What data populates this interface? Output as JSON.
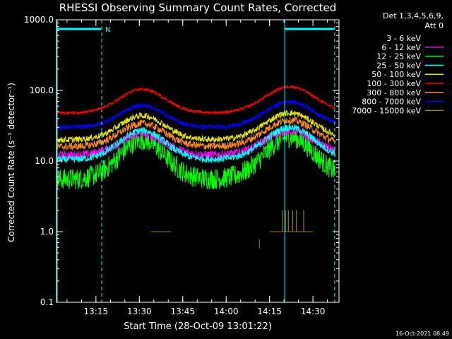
{
  "chart_data": {
    "type": "line",
    "title": "RHESSI Observing Summary Count Rates, Corrected",
    "xlabel": "Start Time (28-Oct-09 13:01:22)",
    "ylabel": "Corrected Count Rate (s⁻¹ detector⁻¹)",
    "y_scale": "log",
    "ylim": [
      0.1,
      1000
    ],
    "y_ticks": [
      {
        "value": 1000,
        "label": "1000.0"
      },
      {
        "value": 100,
        "label": "100.0"
      },
      {
        "value": 10,
        "label": "10.0"
      },
      {
        "value": 1,
        "label": "1.0"
      },
      {
        "value": 0.1,
        "label": "0.1"
      }
    ],
    "xlim_minutes": [
      1.37,
      99.0
    ],
    "x_ticks": [
      {
        "minute": 15,
        "label": "13:15"
      },
      {
        "minute": 30,
        "label": "13:30"
      },
      {
        "minute": 45,
        "label": "13:45"
      },
      {
        "minute": 60,
        "label": "14:00"
      },
      {
        "minute": 75,
        "label": "14:15"
      },
      {
        "minute": 90,
        "label": "14:30"
      }
    ],
    "legend_header": [
      "Det 1,3,4,5,6,9,",
      "Att 0"
    ],
    "series": [
      {
        "name": "3 - 6 keV",
        "color": "#000000",
        "base": 7.0,
        "peak1": 18.0,
        "peak2": 17.0,
        "noise": 0.35
      },
      {
        "name": "6 - 12 keV",
        "color": "#ff00ff",
        "base": 12.0,
        "peak1": 24.0,
        "peak2": 27.0,
        "noise": 0.15
      },
      {
        "name": "12 - 25 keV",
        "color": "#00ff00",
        "base": 5.5,
        "peak1": 20.0,
        "peak2": 22.0,
        "noise": 0.35
      },
      {
        "name": "25 - 50 keV",
        "color": "#00ffff",
        "base": 10.5,
        "peak1": 27.0,
        "peak2": 30.0,
        "noise": 0.12
      },
      {
        "name": "50 - 100 keV",
        "color": "#e8e800",
        "base": 20.0,
        "peak1": 44.0,
        "peak2": 48.0,
        "noise": 0.1
      },
      {
        "name": "100 - 300 keV",
        "color": "#ff0000",
        "base": 48.0,
        "peak1": 104.0,
        "peak2": 113.0,
        "noise": 0.05
      },
      {
        "name": "300 - 800 keV",
        "color": "#ff8c1a",
        "base": 16.0,
        "peak1": 34.0,
        "peak2": 38.0,
        "noise": 0.12
      },
      {
        "name": "800 - 7000 keV",
        "color": "#0000ff",
        "base": 30.0,
        "peak1": 61.0,
        "peak2": 69.0,
        "noise": 0.08
      },
      {
        "name": "7000 - 15000 keV",
        "color": "#9a7d0a",
        "base": 0.0,
        "peak1": 0.0,
        "peak2": 0.0,
        "noise": 0.0
      }
    ],
    "peaks_minutes": [
      31,
      82
    ],
    "peak_width_minutes": 11,
    "night_marker_label": "N",
    "saa_intervals_minutes": [
      [
        1.37,
        17.0
      ],
      [
        80.0,
        97.5
      ]
    ],
    "footer_timestamp": "16-Oct-2021 08:49"
  }
}
